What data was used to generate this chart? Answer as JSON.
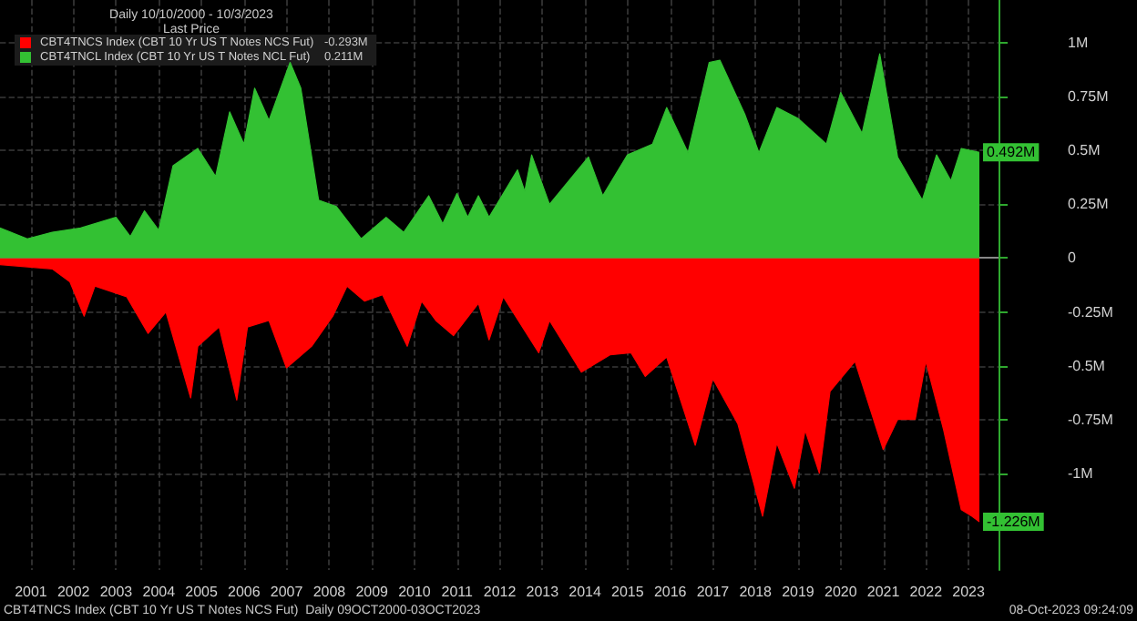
{
  "chart_data": {
    "type": "area",
    "title": "Daily 10/10/2000 - 10/3/2023",
    "legend_title": "Last Price",
    "series": [
      {
        "name": "CBT4TNCS Index (CBT 10 Yr US T Notes NCS Fut)",
        "color": "#ff0000",
        "x": [
          "2000-10-10",
          "2002-01",
          "2002-06",
          "2002-10",
          "2003-01",
          "2003-10",
          "2004-04",
          "2004-09",
          "2005-04",
          "2005-06",
          "2005-12",
          "2006-05",
          "2006-08",
          "2007-02",
          "2007-07",
          "2008-02",
          "2008-08",
          "2008-12",
          "2009-05",
          "2009-10",
          "2010-05",
          "2010-09",
          "2011-01",
          "2011-06",
          "2012-01",
          "2012-04",
          "2012-08",
          "2013-06",
          "2013-09",
          "2014-06",
          "2015-02",
          "2015-08",
          "2015-12",
          "2016-06",
          "2017-02",
          "2017-07",
          "2018-02",
          "2018-09",
          "2019-01",
          "2019-06",
          "2019-09",
          "2020-01",
          "2020-04",
          "2020-11",
          "2021-07",
          "2021-11",
          "2022-04",
          "2022-07",
          "2022-12",
          "2023-05",
          "2023-08",
          "2023-10-03"
        ],
        "values": [
          -0.03,
          -0.05,
          -0.11,
          -0.27,
          -0.13,
          -0.18,
          -0.35,
          -0.25,
          -0.65,
          -0.41,
          -0.32,
          -0.66,
          -0.32,
          -0.29,
          -0.51,
          -0.41,
          -0.27,
          -0.13,
          -0.2,
          -0.17,
          -0.41,
          -0.2,
          -0.29,
          -0.36,
          -0.21,
          -0.38,
          -0.18,
          -0.44,
          -0.29,
          -0.53,
          -0.45,
          -0.44,
          -0.55,
          -0.46,
          -0.87,
          -0.56,
          -0.77,
          -1.2,
          -0.86,
          -1.07,
          -0.8,
          -1.0,
          -0.62,
          -0.48,
          -0.89,
          -0.75,
          -0.75,
          -0.48,
          -0.8,
          -1.17,
          -1.2,
          -1.226
        ]
      },
      {
        "name": "CBT4TNCL Index (CBT 10 Yr US T Notes NCL Fut)",
        "color": "#33c133",
        "x": [
          "2000-10-10",
          "2001-06",
          "2002-01",
          "2002-09",
          "2003-07",
          "2003-11",
          "2004-03",
          "2004-07",
          "2004-11",
          "2005-06",
          "2005-11",
          "2006-03",
          "2006-07",
          "2006-10",
          "2007-02",
          "2007-08",
          "2007-11",
          "2008-04",
          "2008-09",
          "2009-04",
          "2009-11",
          "2010-04",
          "2010-11",
          "2011-03",
          "2011-07",
          "2011-10",
          "2012-01",
          "2012-04",
          "2012-12",
          "2013-02",
          "2013-04",
          "2013-09",
          "2014-08",
          "2014-12",
          "2015-07",
          "2016-02",
          "2016-06",
          "2016-12",
          "2017-06",
          "2017-09",
          "2018-04",
          "2018-08",
          "2019-01",
          "2019-07",
          "2020-03",
          "2020-07",
          "2021-01",
          "2021-06",
          "2021-11",
          "2022-06",
          "2022-10",
          "2023-02",
          "2023-05",
          "2023-10-03"
        ],
        "values": [
          0.14,
          0.09,
          0.12,
          0.14,
          0.19,
          0.1,
          0.22,
          0.13,
          0.43,
          0.51,
          0.38,
          0.68,
          0.53,
          0.79,
          0.64,
          0.91,
          0.79,
          0.27,
          0.24,
          0.09,
          0.19,
          0.12,
          0.29,
          0.16,
          0.3,
          0.19,
          0.29,
          0.19,
          0.41,
          0.31,
          0.48,
          0.25,
          0.47,
          0.29,
          0.48,
          0.53,
          0.7,
          0.49,
          0.91,
          0.92,
          0.67,
          0.49,
          0.7,
          0.65,
          0.53,
          0.77,
          0.58,
          0.95,
          0.47,
          0.27,
          0.48,
          0.36,
          0.51,
          0.492
        ]
      }
    ],
    "xlim": [
      "2000-10-10",
      "2024-03-15"
    ],
    "xticks": [
      {
        "value": "2001-07-02",
        "label": "2001"
      },
      {
        "value": "2002-07-02",
        "label": "2002"
      },
      {
        "value": "2003-07-02",
        "label": "2003"
      },
      {
        "value": "2004-07-02",
        "label": "2004"
      },
      {
        "value": "2005-07-02",
        "label": "2005"
      },
      {
        "value": "2006-07-02",
        "label": "2006"
      },
      {
        "value": "2007-07-02",
        "label": "2007"
      },
      {
        "value": "2008-07-02",
        "label": "2008"
      },
      {
        "value": "2009-07-02",
        "label": "2009"
      },
      {
        "value": "2010-07-02",
        "label": "2010"
      },
      {
        "value": "2011-07-02",
        "label": "2011"
      },
      {
        "value": "2012-07-02",
        "label": "2012"
      },
      {
        "value": "2013-07-02",
        "label": "2013"
      },
      {
        "value": "2014-07-02",
        "label": "2014"
      },
      {
        "value": "2015-07-02",
        "label": "2015"
      },
      {
        "value": "2016-07-02",
        "label": "2016"
      },
      {
        "value": "2017-07-02",
        "label": "2017"
      },
      {
        "value": "2018-07-02",
        "label": "2018"
      },
      {
        "value": "2019-07-02",
        "label": "2019"
      },
      {
        "value": "2020-07-02",
        "label": "2020"
      },
      {
        "value": "2021-07-02",
        "label": "2021"
      },
      {
        "value": "2022-07-02",
        "label": "2022"
      },
      {
        "value": "2023-07-02",
        "label": "2023"
      }
    ],
    "ylim": [
      -1.45,
      1.2
    ],
    "yticks": [
      {
        "value": -1,
        "label": "-1M"
      },
      {
        "value": -0.75,
        "label": "-0.75M"
      },
      {
        "value": -0.5,
        "label": "-0.5M"
      },
      {
        "value": -0.25,
        "label": "-0.25M"
      },
      0,
      {
        "value": 0.25,
        "label": "0.25M"
      },
      {
        "value": 0.5,
        "label": "0.5M"
      },
      {
        "value": 0.75,
        "label": "0.75M"
      },
      {
        "value": 1,
        "label": "1M"
      }
    ],
    "grid": true,
    "legend": "top left",
    "annotations": [
      "CBT4TNCS Index (CBT 10 Yr US T Notes NCS Fut)  Daily 09OCT2000-03OCT2023",
      "08-Oct-2023 09:24:09",
      "-0.293M",
      "0.211M",
      {
        "text": "0.492M",
        "x": "2023-10-03",
        "y": 0.492
      },
      {
        "text": "-1.226M",
        "x": "2023-10-03",
        "y": -1.226
      }
    ]
  }
}
